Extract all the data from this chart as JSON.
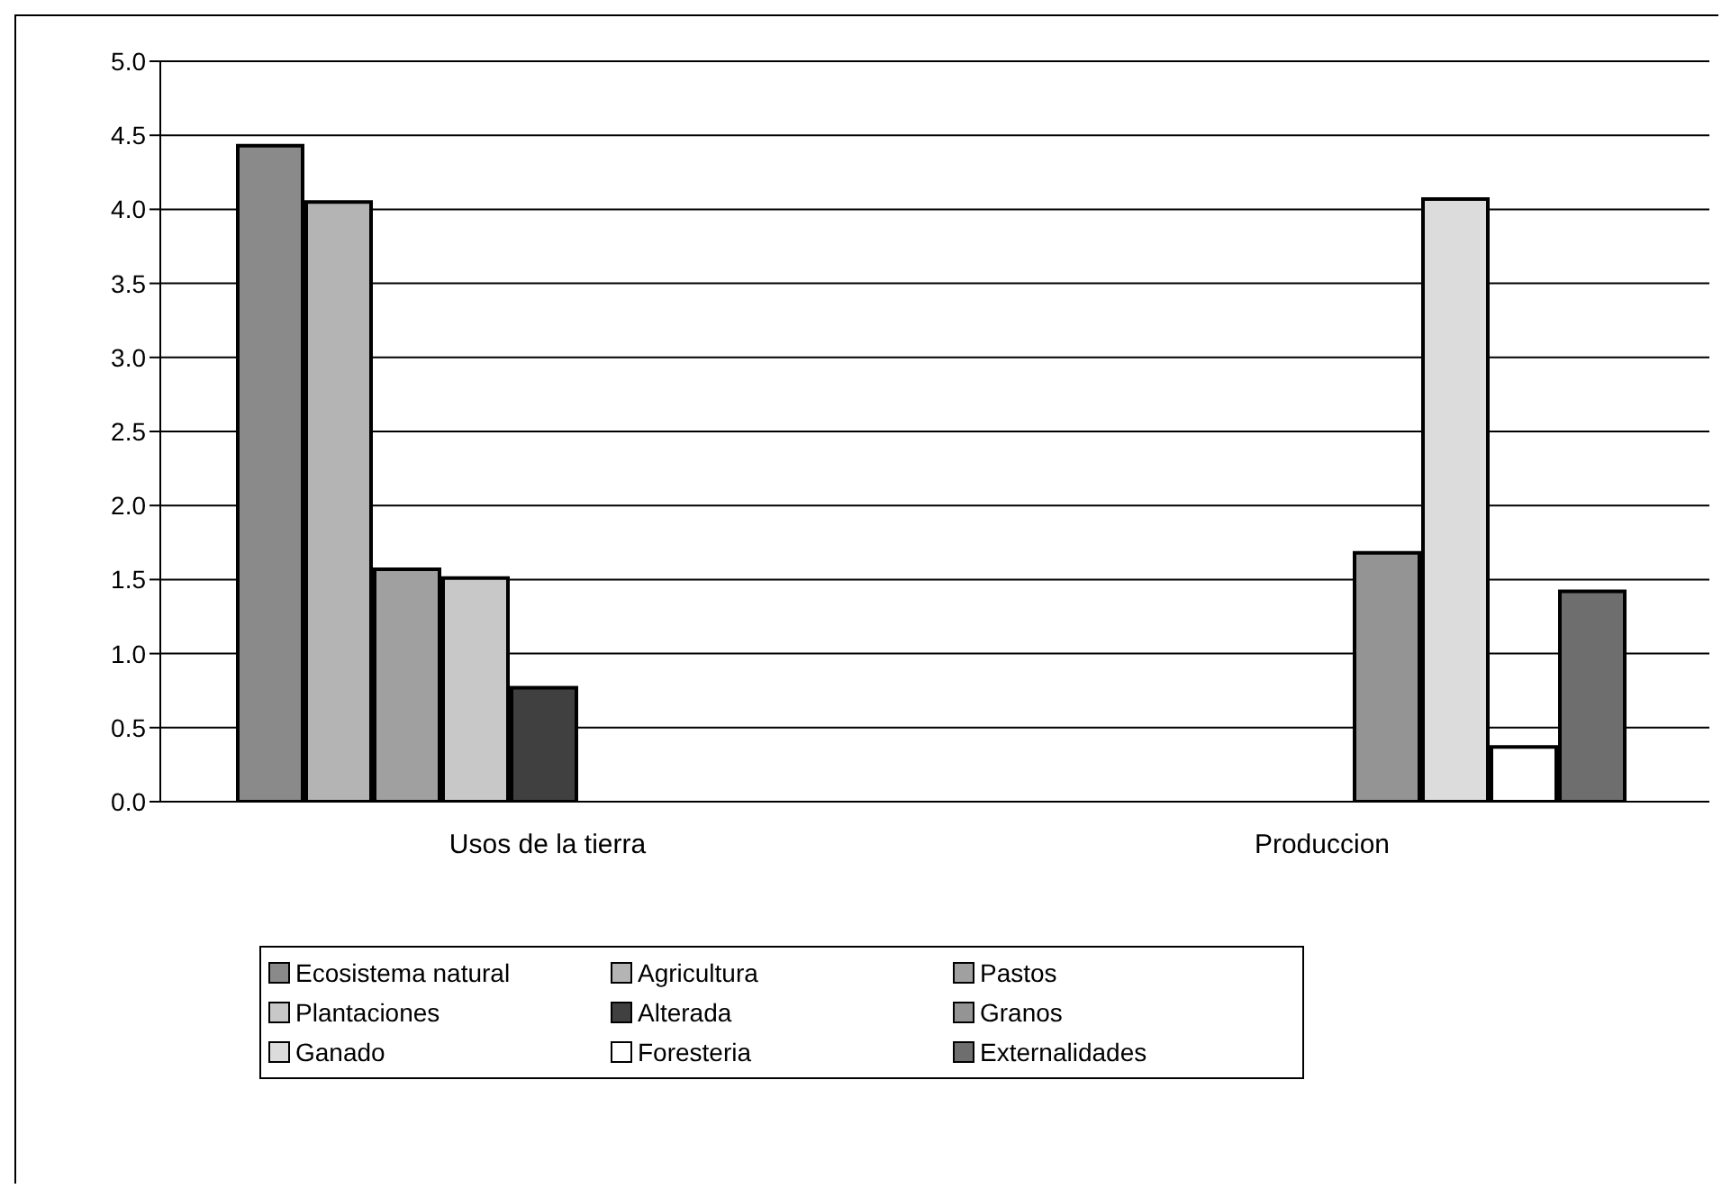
{
  "chart_data": {
    "type": "bar",
    "categories": [
      "Usos de la tierra",
      "Produccion"
    ],
    "series": [
      {
        "name": "Ecosistema natural",
        "color": "#8a8a8a",
        "values": [
          4.43,
          null
        ]
      },
      {
        "name": "Agricultura",
        "color": "#b4b4b4",
        "values": [
          4.05,
          null
        ]
      },
      {
        "name": "Pastos",
        "color": "#a0a0a0",
        "values": [
          1.57,
          null
        ]
      },
      {
        "name": "Plantaciones",
        "color": "#c8c8c8",
        "values": [
          1.51,
          null
        ]
      },
      {
        "name": "Alterada",
        "color": "#404040",
        "values": [
          0.77,
          null
        ]
      },
      {
        "name": "Granos",
        "color": "#949494",
        "values": [
          null,
          1.68
        ]
      },
      {
        "name": "Ganado",
        "color": "#dcdcdc",
        "values": [
          null,
          4.07
        ]
      },
      {
        "name": "Foresteria",
        "color": "#ffffff",
        "values": [
          null,
          0.37
        ]
      },
      {
        "name": "Externalidades",
        "color": "#6e6e6e",
        "values": [
          null,
          1.42
        ]
      }
    ],
    "ylim": [
      0,
      5
    ],
    "yticks": [
      {
        "value": 0,
        "label": "0.0"
      },
      0.5,
      {
        "value": 1,
        "label": "1.0"
      },
      1.5,
      {
        "value": 2,
        "label": "2.0"
      },
      2.5,
      {
        "value": 3,
        "label": "3.0"
      },
      3.5,
      {
        "value": 4,
        "label": "4.0"
      },
      4.5,
      {
        "value": 5,
        "label": "5.0"
      }
    ],
    "grid": "y",
    "legend": "bottom"
  }
}
